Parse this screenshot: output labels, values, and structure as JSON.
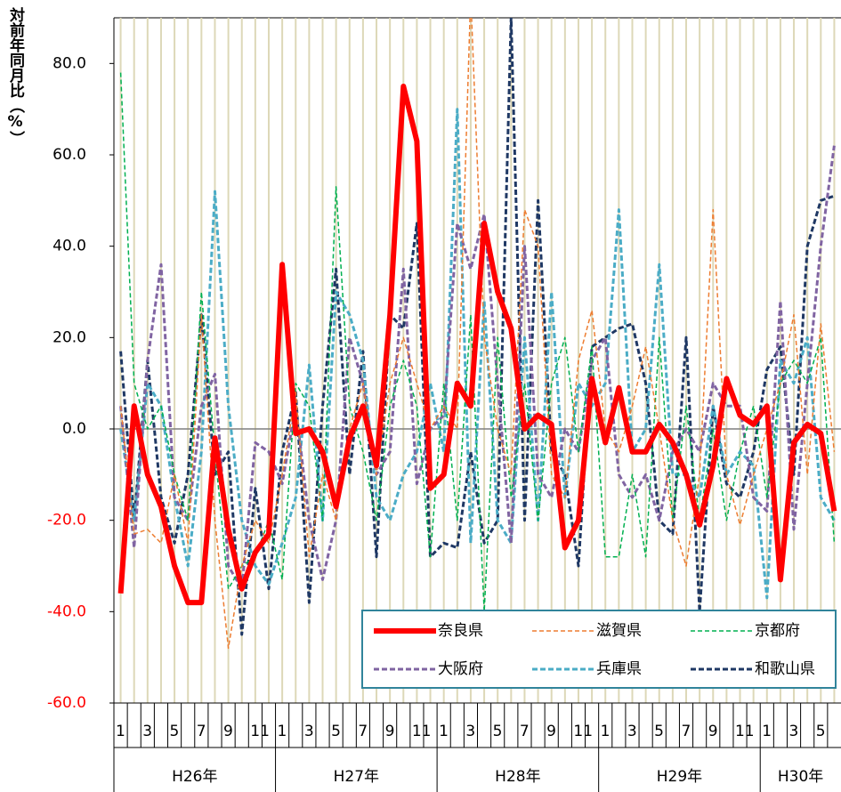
{
  "chart_data": {
    "type": "line",
    "y_label": "対前年同月比（%）",
    "categories": [
      "1",
      null,
      "3",
      null,
      "5",
      null,
      "7",
      null,
      "9",
      null,
      "11",
      null,
      "1",
      null,
      "3",
      null,
      "5",
      null,
      "7",
      null,
      "9",
      null,
      "11",
      null,
      "1",
      null,
      "3",
      null,
      "5",
      null,
      "7",
      null,
      "9",
      null,
      "11",
      null,
      "1",
      null,
      "3",
      null,
      "5",
      null,
      "7",
      null,
      "9",
      null,
      "11",
      null,
      "1",
      null,
      "3",
      null,
      "5",
      null
    ],
    "x_groups": [
      "H26年",
      "H27年",
      "H28年",
      "H29年",
      "H30年"
    ],
    "ylim": [
      -60,
      90
    ],
    "yticks": [
      {
        "value": -60,
        "label": "-60.0"
      },
      {
        "value": -40,
        "label": "-40.0"
      },
      {
        "value": -20,
        "label": "-20.0"
      },
      {
        "value": 0,
        "label": "0.0"
      },
      {
        "value": 20,
        "label": "20.0"
      },
      {
        "value": 40,
        "label": "40.0"
      },
      {
        "value": 60,
        "label": "60.0"
      },
      {
        "value": 80,
        "label": "80.0"
      }
    ],
    "negative_tick_color": "#ff0000",
    "grid": true,
    "series": [
      {
        "name": "奈良県",
        "color": "#ff0000",
        "values": [
          -36,
          5,
          -10,
          -17,
          -30,
          -38,
          -38,
          -2,
          -22,
          -35,
          -27,
          -23,
          36,
          -1,
          0,
          -5,
          -17,
          -2,
          5,
          -8,
          25,
          75,
          63,
          -13,
          -10,
          10,
          5,
          45,
          30,
          22,
          0,
          3,
          1,
          -26,
          -20,
          11,
          -3,
          9,
          -5,
          -5,
          1,
          -3,
          -10,
          -21,
          -8,
          11,
          3,
          1,
          5,
          -33,
          -3,
          1,
          -1,
          -18
        ]
      },
      {
        "name": "滋賀県",
        "color": "#ed7d31",
        "values": [
          5,
          -23,
          -22,
          -25,
          -10,
          -25,
          25,
          -20,
          -48,
          -30,
          -20,
          -25,
          -10,
          8,
          -28,
          -10,
          -20,
          0,
          10,
          -10,
          10,
          20,
          10,
          0,
          5,
          0,
          95,
          20,
          0,
          -10,
          48,
          40,
          -10,
          -15,
          15,
          26,
          0,
          -5,
          5,
          18,
          0,
          -20,
          -30,
          -10,
          48,
          -10,
          -21,
          -10,
          0,
          10,
          25,
          -10,
          23,
          -5
        ]
      },
      {
        "name": "京都府",
        "color": "#00b050",
        "values": [
          78,
          10,
          0,
          5,
          -10,
          -20,
          30,
          -5,
          -35,
          -30,
          -28,
          -20,
          -33,
          10,
          5,
          -20,
          53,
          5,
          -5,
          -20,
          5,
          15,
          5,
          -28,
          10,
          -20,
          25,
          -40,
          20,
          -15,
          10,
          -20,
          10,
          20,
          -5,
          18,
          -28,
          -28,
          -10,
          -28,
          20,
          -20,
          5,
          -20,
          0,
          -20,
          -5,
          5,
          -15,
          10,
          15,
          10,
          20,
          -25
        ]
      },
      {
        "name": "大阪府",
        "color": "#8064a2",
        "values": [
          5,
          -26,
          15,
          36,
          -15,
          -20,
          5,
          12,
          -30,
          -35,
          -3,
          -5,
          -12,
          5,
          -20,
          -33,
          -20,
          20,
          10,
          -10,
          -5,
          35,
          -12,
          0,
          3,
          45,
          35,
          47,
          10,
          -25,
          40,
          -10,
          -15,
          0,
          -5,
          15,
          20,
          -10,
          -15,
          -10,
          -20,
          -5,
          0,
          -5,
          10,
          5,
          5,
          -15,
          -18,
          28,
          -22,
          10,
          40,
          62
        ]
      },
      {
        "name": "兵庫県",
        "color": "#4bacc6",
        "values": [
          0,
          -20,
          10,
          5,
          -15,
          -30,
          -5,
          52,
          5,
          -20,
          -30,
          -34,
          -25,
          -15,
          14,
          -20,
          30,
          25,
          15,
          -15,
          -20,
          -10,
          -5,
          10,
          -5,
          70,
          -25,
          28,
          -20,
          -25,
          20,
          -20,
          30,
          -15,
          10,
          5,
          10,
          48,
          -5,
          0,
          36,
          -10,
          -10,
          -15,
          5,
          -10,
          -5,
          -8,
          -37,
          15,
          10,
          20,
          -15,
          -20
        ]
      },
      {
        "name": "和歌山県",
        "color": "#1f3864",
        "values": [
          17,
          -20,
          15,
          -15,
          -25,
          -10,
          25,
          -10,
          -5,
          -45,
          -13,
          -35,
          -5,
          8,
          -38,
          5,
          35,
          -10,
          17,
          -28,
          25,
          22,
          45,
          -28,
          -25,
          -26,
          -5,
          -25,
          -20,
          90,
          -20,
          50,
          -5,
          -10,
          -30,
          18,
          20,
          22,
          23,
          10,
          -20,
          -23,
          20,
          -40,
          5,
          -12,
          -15,
          -5,
          13,
          18,
          -10,
          40,
          50,
          51
        ]
      }
    ]
  }
}
